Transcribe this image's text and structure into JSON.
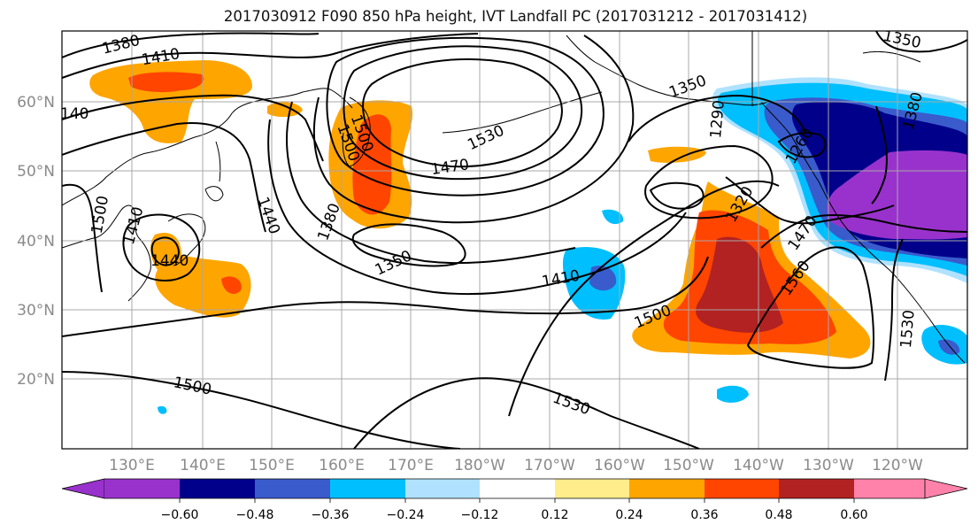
{
  "title": "2017030912 F090 850 hPa height, IVT Landfall PC (2017031212 - 2017031412)",
  "colors": {
    "ocean": "#ffffff",
    "grid": "#a8a8a8",
    "contour": "#000000",
    "coast": "#000000"
  },
  "lat_labels": [
    "60°N",
    "50°N",
    "40°N",
    "30°N",
    "20°N"
  ],
  "lon_labels": [
    "130°E",
    "140°E",
    "150°E",
    "160°E",
    "170°E",
    "180°W",
    "170°W",
    "160°W",
    "150°W",
    "140°W",
    "130°W",
    "120°W"
  ],
  "contour_labels": [
    "1380",
    "1410",
    "140",
    "1500",
    "1410",
    "1440",
    "1440",
    "1500",
    "1530",
    "1470",
    "1380",
    "1350",
    "1410",
    "1500",
    "1530",
    "1500",
    "1350",
    "1290",
    "1320",
    "1470",
    "1560",
    "1530",
    "1380",
    "1350",
    "1500",
    "1260"
  ],
  "colorbar": {
    "tick_labels": [
      "−0.60",
      "−0.48",
      "−0.36",
      "−0.24",
      "−0.12",
      "0.12",
      "0.24",
      "0.36",
      "0.48",
      "0.60"
    ],
    "colors": [
      "#9932cc",
      "#00008b",
      "#3a5bcc",
      "#00bfff",
      "#b0e2ff",
      "#ffffff",
      "#ffec8b",
      "#ffa500",
      "#ff4500",
      "#b22222",
      "#ff82ab"
    ]
  }
}
